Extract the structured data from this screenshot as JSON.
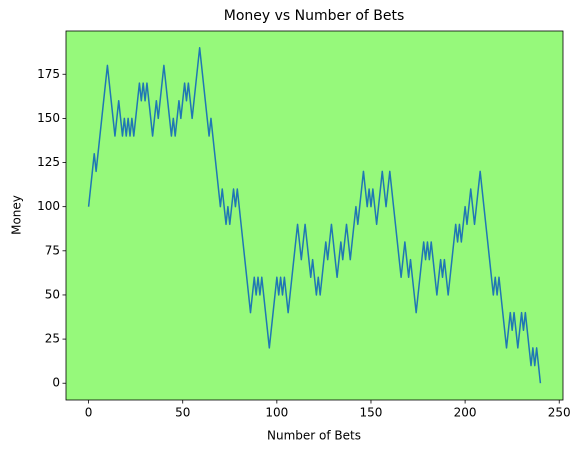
{
  "chart_data": {
    "type": "line",
    "title": "Money vs Number of Bets",
    "x_label": "Number of Bets",
    "y_label": "Money",
    "background": "#96f97b",
    "x": [
      0,
      1,
      2,
      3,
      4,
      5,
      6,
      7,
      8,
      9,
      10,
      11,
      12,
      13,
      14,
      15,
      16,
      17,
      18,
      19,
      20,
      21,
      22,
      23,
      24,
      25,
      26,
      27,
      28,
      29,
      30,
      31,
      32,
      33,
      34,
      35,
      36,
      37,
      38,
      39,
      40,
      41,
      42,
      43,
      44,
      45,
      46,
      47,
      48,
      49,
      50,
      51,
      52,
      53,
      54,
      55,
      56,
      57,
      58,
      59,
      60,
      61,
      62,
      63,
      64,
      65,
      66,
      67,
      68,
      69,
      70,
      71,
      72,
      73,
      74,
      75,
      76,
      77,
      78,
      79,
      80,
      81,
      82,
      83,
      84,
      85,
      86,
      87,
      88,
      89,
      90,
      91,
      92,
      93,
      94,
      95,
      96,
      97,
      98,
      99,
      100,
      101,
      102,
      103,
      104,
      105,
      106,
      107,
      108,
      109,
      110,
      111,
      112,
      113,
      114,
      115,
      116,
      117,
      118,
      119,
      120,
      121,
      122,
      123,
      124,
      125,
      126,
      127,
      128,
      129,
      130,
      131,
      132,
      133,
      134,
      135,
      136,
      137,
      138,
      139,
      140,
      141,
      142,
      143,
      144,
      145,
      146,
      147,
      148,
      149,
      150,
      151,
      152,
      153,
      154,
      155,
      156,
      157,
      158,
      159,
      160,
      161,
      162,
      163,
      164,
      165,
      166,
      167,
      168,
      169,
      170,
      171,
      172,
      173,
      174,
      175,
      176,
      177,
      178,
      179,
      180,
      181,
      182,
      183,
      184,
      185,
      186,
      187,
      188,
      189,
      190,
      191,
      192,
      193,
      194,
      195,
      196,
      197,
      198,
      199,
      200,
      201,
      202,
      203,
      204,
      205,
      206,
      207,
      208,
      209,
      210,
      211,
      212,
      213,
      214,
      215,
      216,
      217,
      218,
      219,
      220,
      221,
      222,
      223,
      224,
      225,
      226,
      227,
      228,
      229,
      230,
      231,
      232,
      233,
      234,
      235,
      236,
      237,
      238,
      239,
      240
    ],
    "series": [
      {
        "color": "#1f77b4",
        "values": [
          100,
          110,
          120,
          130,
          120,
          130,
          140,
          150,
          160,
          170,
          180,
          170,
          160,
          150,
          140,
          150,
          160,
          150,
          140,
          150,
          140,
          150,
          140,
          150,
          140,
          150,
          160,
          170,
          160,
          170,
          160,
          170,
          160,
          150,
          140,
          150,
          160,
          150,
          160,
          170,
          180,
          170,
          160,
          150,
          140,
          150,
          140,
          150,
          160,
          150,
          160,
          170,
          160,
          170,
          160,
          150,
          160,
          170,
          180,
          190,
          180,
          170,
          160,
          150,
          140,
          150,
          140,
          130,
          120,
          110,
          100,
          110,
          100,
          90,
          100,
          90,
          100,
          110,
          100,
          110,
          100,
          90,
          80,
          70,
          60,
          50,
          40,
          50,
          60,
          50,
          60,
          50,
          60,
          50,
          40,
          30,
          20,
          30,
          40,
          50,
          60,
          50,
          60,
          50,
          60,
          50,
          40,
          50,
          60,
          70,
          80,
          90,
          80,
          70,
          80,
          90,
          80,
          70,
          60,
          70,
          60,
          50,
          60,
          50,
          60,
          70,
          80,
          70,
          80,
          90,
          80,
          70,
          60,
          70,
          80,
          70,
          80,
          90,
          80,
          70,
          80,
          90,
          100,
          90,
          100,
          110,
          120,
          110,
          100,
          110,
          100,
          110,
          100,
          90,
          100,
          110,
          120,
          110,
          100,
          110,
          120,
          110,
          100,
          90,
          80,
          70,
          60,
          70,
          80,
          70,
          60,
          70,
          60,
          50,
          40,
          50,
          60,
          70,
          80,
          70,
          80,
          70,
          80,
          70,
          60,
          50,
          60,
          70,
          60,
          70,
          60,
          50,
          60,
          70,
          80,
          90,
          80,
          90,
          80,
          90,
          100,
          90,
          100,
          110,
          100,
          90,
          100,
          110,
          120,
          110,
          100,
          90,
          80,
          70,
          60,
          50,
          60,
          50,
          60,
          50,
          40,
          30,
          20,
          30,
          40,
          30,
          40,
          30,
          20,
          30,
          40,
          30,
          40,
          30,
          20,
          10,
          20,
          10,
          20,
          10,
          0
        ]
      }
    ],
    "xlim": [
      -12,
      252
    ],
    "xticks": [
      0,
      50,
      100,
      150,
      200,
      250
    ],
    "ylim": [
      -9.5,
      199.5
    ],
    "yticks": [
      0,
      25,
      50,
      75,
      100,
      125,
      150,
      175
    ]
  }
}
